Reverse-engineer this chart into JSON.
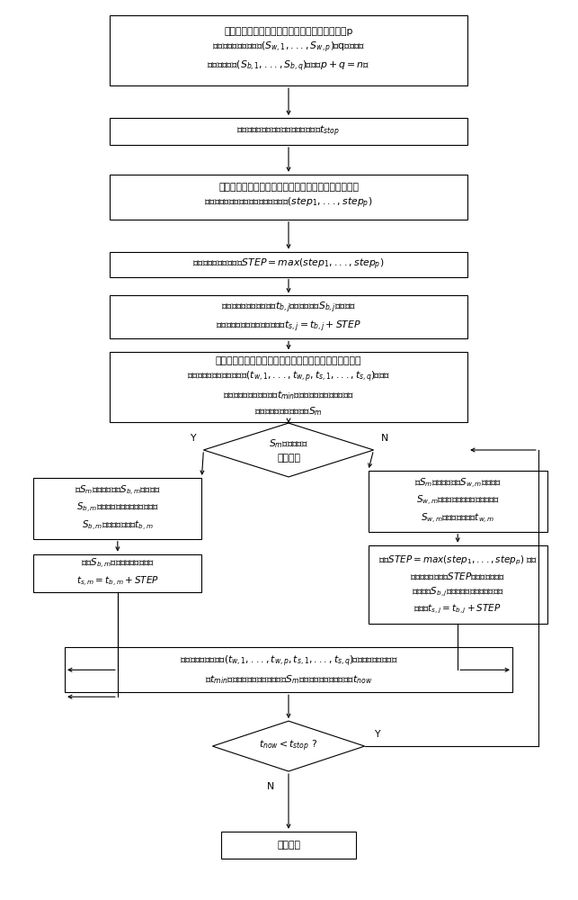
{
  "bg_color": "#ffffff",
  "box_color": "#ffffff",
  "box_edge": "#000000",
  "text_color": "#000000",
  "box1_text": "选取待仿真的复杂产品模型，该复杂产品模型由p\n个白盒离散事件子系统($S_{w,1},...,S_{w,p}$)与q个黑盒离\n散事件子系统($S_{b,1},...,S_{b,q}$)组成（$p+q=n$）",
  "box2_text": "设置该复杂产品模型的仿真停止时间为$t_{stop}$",
  "box3_text": "首先使所有白盒子系统按其各自的事件表推进一步，记\n此时各个白盒子系统的当前步长分别为($step_1,...,step_p$)",
  "box4_text": "计算当前安全时间距离$STEP = max(step_1,...,step_p)$",
  "box5_text": "对于每个当前仿真时间为$t_{b,j}$的黑盒子系统$S_{b,j}$，计算该\n黑盒子系统的当前安全仿真时间$t_{s,j} = t_{b,j} + STEP$",
  "box6_text": "对所有白盒子系统的当前仿真时间和所有黑盒子系统的当\n前安全仿真时间构成的序列($t_{w,1},...,t_{w,p},t_{s,1},...,t_{s,q}$)排序，\n选取其中数值最小的时间$t_{min}$所对应的子系统为仿真中下\n一个推进的子系统，记作$S_m$",
  "diamond1_text": "$S_m$是否为黑盒\n子系统？",
  "box7_text": "若$S_m$为黑盒子系统$S_{b,m}$，则按照\n$S_{b,m}$的事件表向前推进一步，更新\n$S_{b,m}$的当前仿真时间$t_{b,m}$",
  "box8_text": "更新$S_{b,m}$的当前安全仿真时间\n$t_{s,m} = t_{b,m} + STEP$",
  "box9_text": "若$S_m$为白盒子系统$S_{w,m}$，则按照\n$S_{w,m}$的事件表向前推进一步，更新\n$S_{w,m}$的当前仿真时间$t_{w,m}$",
  "box10_text": "按照$STEP = max(step_1,...,step_p)$ 更新\n当前安全时间距离$STEP$，然后对每个黑\n盒子系统$S_{b,j}$，更新其对应的当前安全仿\n真时间$t_{s,j} = t_{b,j} + STEP$",
  "box11_text": "从更新后的时间序列($t_{w,1},...,t_{w,p},t_{s,1},...,t_{s,q}$)中选取数值最小的时\n间$t_{min}$所对应的子系统，记为新的$S_m$，将其当前仿真时间记为$t_{now}$",
  "diamond2_text": "$t_{now} < t_{stop}$ ?",
  "box12_text": "仿真结束",
  "label_Y": "Y",
  "label_N": "N",
  "font_size": 7.8,
  "font_size_small": 7.0
}
